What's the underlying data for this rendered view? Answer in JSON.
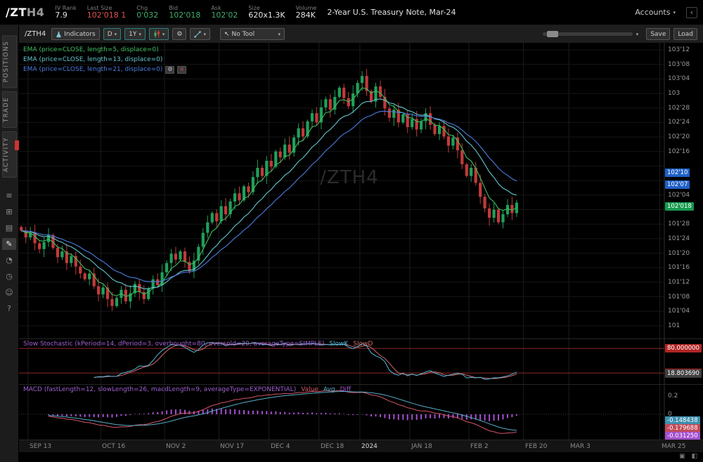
{
  "header": {
    "symbol": "/ZT",
    "symbol_suffix": "H4",
    "stats": [
      {
        "label": "IV Rank",
        "value": "7.9",
        "color": "white"
      },
      {
        "label": "Last Size",
        "value": "102'018 1",
        "color": "red"
      },
      {
        "label": "Chg",
        "value": "0'032",
        "color": "green"
      },
      {
        "label": "Bid",
        "value": "102'018",
        "color": "green"
      },
      {
        "label": "Ask",
        "value": "102'02",
        "color": "green"
      },
      {
        "label": "Size",
        "value": "620x1.3K",
        "color": "white"
      },
      {
        "label": "Volume",
        "value": "284K",
        "color": "white"
      }
    ],
    "instrument": "2-Year U.S. Treasury Note, Mar-24",
    "accounts_label": "Accounts"
  },
  "sidebar": {
    "tabs": [
      "POSITIONS",
      "TRADE",
      "ACTIVITY"
    ],
    "icons": [
      {
        "name": "list-icon",
        "glyph": "≡"
      },
      {
        "name": "grid-icon",
        "glyph": "⊞"
      },
      {
        "name": "rows-icon",
        "glyph": "▤"
      },
      {
        "name": "pencil-icon",
        "glyph": "✎",
        "active": true
      },
      {
        "name": "pie-icon",
        "glyph": "◔"
      },
      {
        "name": "clock-icon",
        "glyph": "◷"
      },
      {
        "name": "people-icon",
        "glyph": "☺"
      },
      {
        "name": "help-icon",
        "glyph": "?"
      }
    ]
  },
  "toolbar": {
    "symbol_label": "/ZTH4",
    "indicators_label": "Indicators",
    "timeframe": "D",
    "range": "1Y",
    "tool_label": "No Tool",
    "save_label": "Save",
    "load_label": "Load"
  },
  "icons": {
    "caret": "▾",
    "gear": "⚙",
    "cursor": "↖",
    "collapse": "‹",
    "close": "×"
  },
  "bottom_icons": [
    {
      "name": "maximize-icon",
      "glyph": "▣"
    },
    {
      "name": "panel-toggle-icon",
      "glyph": "◧"
    }
  ],
  "studies": {
    "stoch_label": "Slow Stochastic (kPeriod=14, dPeriod=3, overbought=80, oversold=20, averageType=SIMPLE)",
    "stoch_plots": [
      {
        "name": "SlowK",
        "color": "#56b8d8"
      },
      {
        "name": "SlowD",
        "color": "#d46a6a"
      }
    ],
    "macd_label": "MACD (fastLength=12, slowLength=26, macdLength=9, averageType=EXPONENTIAL)",
    "macd_plots": [
      {
        "name": "Value",
        "color": "#d4566a"
      },
      {
        "name": "Avg",
        "color": "#56aec8"
      },
      {
        "name": "Diff",
        "color": "#a44fd0"
      }
    ],
    "label_color": "#a05fd2"
  },
  "chart_data": {
    "type": "candlestick",
    "symbol": "/ZTH4",
    "watermark": "/ZTH4",
    "timeframe": "D",
    "price_axis": {
      "max": 103.375,
      "min": 101.0,
      "step": 0.125,
      "labels": [
        "103'12",
        "103'08",
        "103'04",
        "103",
        "102'28",
        "102'24",
        "102'20",
        "102'16",
        "102'12",
        "102'08",
        "102'04",
        "102",
        "101'28",
        "101'24",
        "101'20",
        "101'16",
        "101'12",
        "101'08",
        "101'04",
        "101"
      ]
    },
    "closes": [
      101.82,
      101.76,
      101.8,
      101.71,
      101.66,
      101.72,
      101.78,
      101.67,
      101.59,
      101.64,
      101.54,
      101.6,
      101.51,
      101.45,
      101.4,
      101.45,
      101.34,
      101.27,
      101.33,
      101.23,
      101.17,
      101.24,
      101.31,
      101.21,
      101.28,
      101.36,
      101.29,
      101.23,
      101.32,
      101.4,
      101.35,
      101.46,
      101.54,
      101.62,
      101.57,
      101.64,
      101.55,
      101.47,
      101.56,
      101.68,
      101.8,
      101.89,
      101.97,
      101.9,
      102.03,
      101.96,
      102.07,
      102.14,
      102.08,
      102.2,
      102.15,
      102.28,
      102.36,
      102.29,
      102.42,
      102.37,
      102.5,
      102.45,
      102.56,
      102.49,
      102.62,
      102.7,
      102.63,
      102.76,
      102.83,
      102.75,
      102.88,
      102.95,
      102.86,
      102.97,
      103.05,
      102.96,
      102.89,
      103.0,
      103.09,
      103.15,
      103.02,
      102.93,
      103.06,
      102.97,
      102.87,
      102.79,
      102.86,
      102.75,
      102.82,
      102.71,
      102.78,
      102.69,
      102.76,
      102.83,
      102.73,
      102.65,
      102.72,
      102.63,
      102.55,
      102.62,
      102.51,
      102.39,
      102.29,
      102.36,
      102.23,
      102.11,
      102.01,
      101.93,
      102.0,
      101.89,
      101.96,
      102.04,
      101.97,
      102.06
    ],
    "total_slots": 142,
    "x_labels": [
      {
        "label": "SEP 13",
        "slot": 2
      },
      {
        "label": "OCT 16",
        "slot": 18
      },
      {
        "label": "NOV 2",
        "slot": 32
      },
      {
        "label": "NOV 17",
        "slot": 44
      },
      {
        "label": "DEC 4",
        "slot": 55
      },
      {
        "label": "DEC 18",
        "slot": 66
      },
      {
        "label": "2024",
        "slot": 75,
        "major": true
      },
      {
        "label": "JAN 18",
        "slot": 86
      },
      {
        "label": "FEB 2",
        "slot": 99
      },
      {
        "label": "FEB 20",
        "slot": 111
      },
      {
        "label": "MAR 3",
        "slot": 121
      },
      {
        "label": "MAR 25",
        "slot": 141
      }
    ],
    "ema": [
      {
        "length": 5,
        "color": "#3dbd5d",
        "label": "EMA (price=CLOSE, length=5, displace=0)"
      },
      {
        "length": 13,
        "color": "#63c6cc",
        "label": "EMA (price=CLOSE, length=13, displace=0)"
      },
      {
        "length": 21,
        "color": "#4d7ce0",
        "label": "EMA (price=CLOSE, length=21, displace=0)"
      }
    ],
    "badges": [
      {
        "label": "102'10",
        "price": 102.32,
        "bg": "#2060c8"
      },
      {
        "label": "102'07",
        "price": 102.215,
        "bg": "#2060c8"
      },
      {
        "label": "102'018",
        "price": 102.03,
        "bg": "#169a4e"
      }
    ],
    "stoch": {
      "overbought": 80,
      "oversold": 20,
      "badges": [
        {
          "label": "80.000000",
          "value": 80,
          "bg": "#b22525"
        },
        {
          "label": "20.000000",
          "value": 20,
          "bg": "#b22525"
        },
        {
          "label": "18.803690",
          "value": 18.8,
          "bg": "#404040"
        }
      ]
    },
    "macd": {
      "axis_ticks": [
        {
          "label": "0.2",
          "value": 0.2
        },
        {
          "label": "0",
          "value": 0
        }
      ],
      "badges": [
        {
          "label": "-0.148438",
          "bg": "#3d8fae"
        },
        {
          "label": "-0.179688",
          "bg": "#c24a58"
        },
        {
          "label": "-0.031250",
          "bg": "#a44fd0"
        }
      ]
    }
  }
}
